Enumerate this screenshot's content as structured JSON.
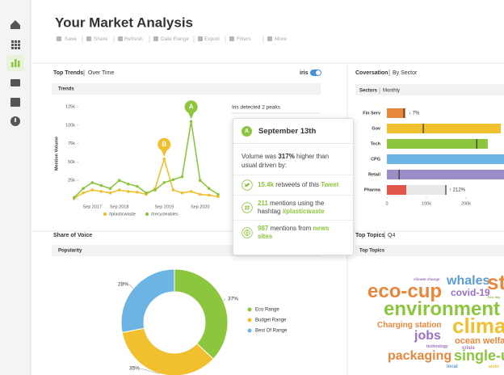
{
  "header": {
    "title": "Your Market Analysis",
    "toolbar": [
      "Save",
      "Share",
      "Refresh",
      "Date Range",
      "Export",
      "Filters",
      "More"
    ]
  },
  "top_trends": {
    "title": "Top Trends",
    "subtitle": "Over Time",
    "toggle_label": "iris",
    "panel_label": "Trends",
    "annotation": "Iris detected 2 peaks",
    "chart_data": {
      "type": "line",
      "y_label": "Mention Volume",
      "categories": [
        null,
        null,
        "Sep 2017",
        null,
        null,
        "Sep 2018",
        null,
        null,
        null,
        null,
        "Sep 2019",
        null,
        null,
        null,
        "Sep 2020",
        null,
        null
      ],
      "series": [
        {
          "name": "#plasticwaste",
          "color": "#f0c02f",
          "peak_label": "B",
          "values": [
            1000,
            8000,
            12000,
            10000,
            8000,
            12000,
            10000,
            9000,
            6000,
            14000,
            54000,
            12000,
            8000,
            10000,
            6000,
            5000,
            3000
          ]
        },
        {
          "name": "#recycleables",
          "color": "#8cc63f",
          "peak_label": "A",
          "values": [
            2000,
            14000,
            22000,
            18000,
            14000,
            25000,
            20000,
            17000,
            8000,
            12000,
            22000,
            26000,
            30000,
            105000,
            25000,
            14000,
            6000
          ]
        }
      ],
      "ylim": [
        0,
        125000
      ],
      "yticks": [
        0,
        {
          "value": 25000,
          "label": "25k"
        },
        {
          "value": 50000,
          "label": "50k"
        },
        {
          "value": 75000,
          "label": "75k"
        },
        {
          "value": 100000,
          "label": "100k"
        },
        {
          "value": 125000,
          "label": "125k"
        }
      ]
    }
  },
  "tooltip": {
    "badge": "A",
    "date": "September 13th",
    "summary": [
      "Volume was ",
      "317%",
      " higher than usual driven by:"
    ],
    "items": [
      [
        "15.4k",
        " retweets of this ",
        "Tweet"
      ],
      [
        "211",
        " mentions using the hashtag ",
        "#plasticwaste"
      ],
      [
        "987",
        " mentions from ",
        "news sites"
      ]
    ]
  },
  "conversation": {
    "title": "Coversation",
    "subtitle": "By Sector",
    "panel_label": "Sectors",
    "panel_sublabel": "Monthly",
    "chart_data": {
      "type": "bar",
      "orientation": "horizontal",
      "categories": [
        "Fin Serv",
        "Gov",
        "Tech",
        "CPG",
        "Retail",
        "Pharma"
      ],
      "values": [
        47000,
        288000,
        255000,
        300000,
        300000,
        49000
      ],
      "benchmarks": [
        43000,
        92000,
        227000,
        null,
        31000,
        149000
      ],
      "change_labels": [
        "↓ 7%",
        null,
        null,
        null,
        null,
        "↑ 212%"
      ],
      "colors": [
        "#e8873a",
        "#f0c02f",
        "#8cc63f",
        "#6cb4e4",
        "#9b8ec8",
        "#e0574a"
      ],
      "xlim": [
        0,
        300000
      ],
      "xticks": [
        0,
        {
          "value": 100000,
          "label": "100k"
        },
        {
          "value": 200000,
          "label": "200k"
        }
      ]
    }
  },
  "share_of_voice": {
    "title": "Share of Voice",
    "panel_label": "Popularity",
    "chart_data": {
      "type": "donut",
      "categories": [
        "Eco Range",
        "Budget Range",
        "Best Of Range"
      ],
      "values": [
        37,
        35,
        28
      ],
      "value_labels": [
        "37%",
        "35%",
        "28%"
      ],
      "colors": [
        "#8cc63f",
        "#f0c02f",
        "#6cb4e4"
      ]
    }
  },
  "top_topics": {
    "title": "Top Topics",
    "subtitle": "Q4",
    "panel_label": "Top Topics",
    "words": [
      {
        "text": "climate change",
        "color": "#9b6fc4"
      },
      {
        "text": "whales",
        "color": "#5b9bd5"
      },
      {
        "text": "st",
        "color": "#e8873a"
      },
      {
        "text": "eco-cup",
        "color": "#e8873a"
      },
      {
        "text": "covid-19",
        "color": "#9b6fc4"
      },
      {
        "text": "Eco day",
        "color": "#8cc63f"
      },
      {
        "text": "environment",
        "color": "#8cc63f"
      },
      {
        "text": "Charging station",
        "color": "#e8873a"
      },
      {
        "text": "clima",
        "color": "#f0c02f"
      },
      {
        "text": "jobs",
        "color": "#9b6fc4"
      },
      {
        "text": "ocean welfar",
        "color": "#e8873a"
      },
      {
        "text": "technology",
        "color": "#9b6fc4"
      },
      {
        "text": "crisis",
        "color": "#9b6fc4"
      },
      {
        "text": "packaging",
        "color": "#e8873a"
      },
      {
        "text": "single-u",
        "color": "#8cc63f"
      },
      {
        "text": "local",
        "color": "#5b9bd5"
      },
      {
        "text": "arctic",
        "color": "#f0c02f"
      }
    ]
  }
}
